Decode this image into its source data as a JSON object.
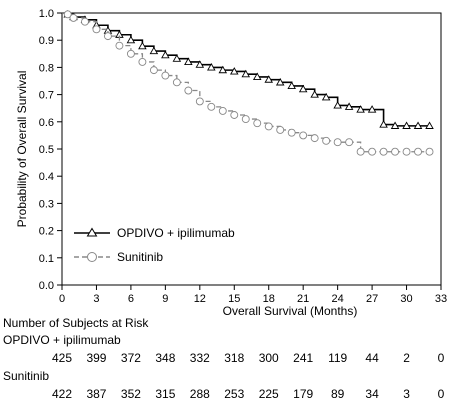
{
  "chart_data": {
    "type": "line",
    "xlabel": "Overall Survival (Months)",
    "ylabel": "Probability of Overall Survival",
    "xlim": [
      0,
      33
    ],
    "ylim": [
      0,
      1.0
    ],
    "x_ticks": [
      0,
      3,
      6,
      9,
      12,
      15,
      18,
      21,
      24,
      27,
      30,
      33
    ],
    "y_ticks": [
      0.0,
      0.1,
      0.2,
      0.3,
      0.4,
      0.5,
      0.6,
      0.7,
      0.8,
      0.9,
      1.0
    ],
    "x_tick_labels": [
      "0",
      "3",
      "6",
      "9",
      "12",
      "15",
      "18",
      "21",
      "24",
      "27",
      "30",
      "33"
    ],
    "y_tick_labels": [
      "0.0",
      "0.1",
      "0.2",
      "0.3",
      "0.4",
      "0.5",
      "0.6",
      "0.7",
      "0.8",
      "0.9",
      "1.0"
    ],
    "grid": false,
    "legend_position": "bottom-left",
    "series": [
      {
        "name": "OPDIVO + ipilimumab",
        "line_style": "solid",
        "marker": "triangle",
        "color": "#000000",
        "x": [
          0,
          0.5,
          1,
          2,
          3,
          4,
          5,
          6,
          7,
          8,
          9,
          10,
          11,
          12,
          13,
          14,
          15,
          16,
          17,
          18,
          19,
          20,
          21,
          22,
          23,
          24,
          25,
          26,
          27,
          28,
          29,
          30,
          31,
          32
        ],
        "y": [
          1.0,
          0.995,
          0.985,
          0.975,
          0.955,
          0.935,
          0.92,
          0.9,
          0.878,
          0.86,
          0.845,
          0.832,
          0.82,
          0.81,
          0.8,
          0.79,
          0.785,
          0.775,
          0.765,
          0.755,
          0.745,
          0.732,
          0.72,
          0.7,
          0.69,
          0.66,
          0.655,
          0.645,
          0.645,
          0.59,
          0.585,
          0.585,
          0.585,
          0.585
        ]
      },
      {
        "name": "Sunitinib",
        "line_style": "dashed",
        "marker": "circle",
        "color": "#888888",
        "x": [
          0,
          0.5,
          1,
          2,
          3,
          4,
          5,
          6,
          7,
          8,
          9,
          10,
          11,
          12,
          13,
          14,
          15,
          16,
          17,
          18,
          19,
          20,
          21,
          22,
          23,
          24,
          25,
          26,
          27,
          28,
          29,
          30,
          31,
          32
        ],
        "y": [
          1.0,
          0.995,
          0.982,
          0.968,
          0.94,
          0.915,
          0.88,
          0.85,
          0.82,
          0.79,
          0.77,
          0.745,
          0.715,
          0.675,
          0.655,
          0.64,
          0.625,
          0.61,
          0.595,
          0.583,
          0.57,
          0.56,
          0.55,
          0.54,
          0.53,
          0.525,
          0.525,
          0.49,
          0.49,
          0.49,
          0.49,
          0.49,
          0.49,
          0.49
        ]
      }
    ],
    "risk_table": {
      "title": "Number of Subjects at Risk",
      "times": [
        0,
        3,
        6,
        9,
        12,
        15,
        18,
        21,
        24,
        27,
        30,
        33
      ],
      "groups": [
        {
          "name": "OPDIVO + ipilimumab",
          "counts": [
            "425",
            "399",
            "372",
            "348",
            "332",
            "318",
            "300",
            "241",
            "119",
            "44",
            "2",
            "0"
          ]
        },
        {
          "name": "Sunitinib",
          "counts": [
            "422",
            "387",
            "352",
            "315",
            "288",
            "253",
            "225",
            "179",
            "89",
            "34",
            "3",
            "0"
          ]
        }
      ]
    }
  }
}
